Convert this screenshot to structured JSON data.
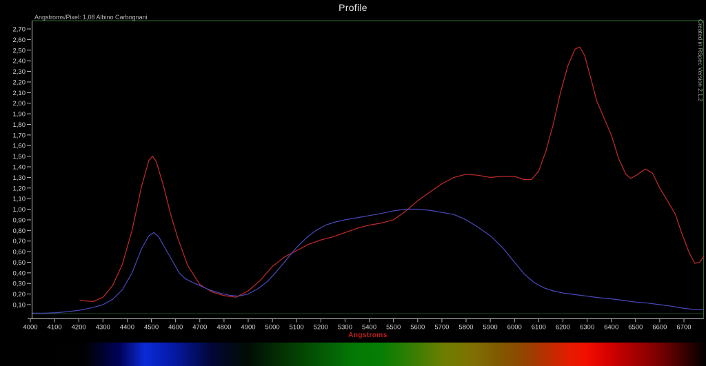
{
  "chart_data": {
    "type": "line",
    "title": "Profile",
    "annotation": "Angstroms/Pixel: 1,08 Albino Carbognani",
    "watermark": "Created in RSpec Version 2.1.2",
    "xlabel": "Angstroms",
    "xlabel_color": "#c41c1c",
    "xlim": [
      3995,
      6795
    ],
    "ylim": [
      0.0,
      2.78
    ],
    "grid": false,
    "legend": "none",
    "x_ticks": [
      4000,
      4100,
      4200,
      4300,
      4400,
      4500,
      4600,
      4700,
      4800,
      4900,
      5000,
      5100,
      5200,
      5300,
      5400,
      5500,
      5600,
      5700,
      5800,
      5900,
      6000,
      6100,
      6200,
      6300,
      6400,
      6500,
      6600,
      6700
    ],
    "y_tick_labels": [
      "2,70",
      "2,60",
      "2,50",
      "2,40",
      "2,30",
      "2,20",
      "2,10",
      "2,00",
      "1,90",
      "1,80",
      "1,70",
      "1,60",
      "1,50",
      "1,40",
      "1,30",
      "1,20",
      "1,10",
      "1,00",
      "0,90",
      "0,80",
      "0,70",
      "0,60",
      "0,50",
      "0,40",
      "0,30",
      "0,20",
      "0,10"
    ],
    "axis_colors": {
      "frame_top": "#2e6b2e",
      "frame_bottom": "#1d4d1d",
      "frame_right": "#2e6b2e",
      "y_axis": "#c9c9b5",
      "x_axis": "#b8b8b8",
      "tick_text": "#d4d4d4"
    },
    "series": [
      {
        "name": "intensity-red",
        "color": "#c62b2b",
        "points": [
          [
            4205,
            0.14
          ],
          [
            4230,
            0.135
          ],
          [
            4260,
            0.13
          ],
          [
            4300,
            0.17
          ],
          [
            4340,
            0.28
          ],
          [
            4380,
            0.48
          ],
          [
            4420,
            0.8
          ],
          [
            4460,
            1.22
          ],
          [
            4490,
            1.46
          ],
          [
            4505,
            1.5
          ],
          [
            4520,
            1.45
          ],
          [
            4550,
            1.22
          ],
          [
            4580,
            0.95
          ],
          [
            4610,
            0.72
          ],
          [
            4650,
            0.47
          ],
          [
            4700,
            0.29
          ],
          [
            4750,
            0.22
          ],
          [
            4800,
            0.185
          ],
          [
            4850,
            0.17
          ],
          [
            4900,
            0.23
          ],
          [
            4950,
            0.33
          ],
          [
            5000,
            0.46
          ],
          [
            5050,
            0.55
          ],
          [
            5100,
            0.61
          ],
          [
            5150,
            0.67
          ],
          [
            5200,
            0.71
          ],
          [
            5250,
            0.74
          ],
          [
            5300,
            0.78
          ],
          [
            5350,
            0.82
          ],
          [
            5400,
            0.85
          ],
          [
            5450,
            0.87
          ],
          [
            5500,
            0.9
          ],
          [
            5550,
            0.98
          ],
          [
            5600,
            1.08
          ],
          [
            5650,
            1.16
          ],
          [
            5700,
            1.24
          ],
          [
            5750,
            1.3
          ],
          [
            5800,
            1.33
          ],
          [
            5850,
            1.32
          ],
          [
            5900,
            1.3
          ],
          [
            5950,
            1.31
          ],
          [
            6000,
            1.31
          ],
          [
            6040,
            1.28
          ],
          [
            6070,
            1.28
          ],
          [
            6100,
            1.36
          ],
          [
            6130,
            1.55
          ],
          [
            6160,
            1.8
          ],
          [
            6190,
            2.1
          ],
          [
            6220,
            2.35
          ],
          [
            6250,
            2.51
          ],
          [
            6270,
            2.53
          ],
          [
            6290,
            2.45
          ],
          [
            6310,
            2.28
          ],
          [
            6340,
            2.02
          ],
          [
            6370,
            1.86
          ],
          [
            6400,
            1.7
          ],
          [
            6430,
            1.48
          ],
          [
            6460,
            1.33
          ],
          [
            6480,
            1.29
          ],
          [
            6510,
            1.33
          ],
          [
            6540,
            1.38
          ],
          [
            6570,
            1.34
          ],
          [
            6600,
            1.2
          ],
          [
            6640,
            1.05
          ],
          [
            6665,
            0.95
          ],
          [
            6690,
            0.78
          ],
          [
            6720,
            0.6
          ],
          [
            6745,
            0.49
          ],
          [
            6765,
            0.5
          ],
          [
            6790,
            0.58
          ]
        ]
      },
      {
        "name": "intensity-blue",
        "color": "#4a4abe",
        "points": [
          [
            4010,
            0.02
          ],
          [
            4060,
            0.02
          ],
          [
            4110,
            0.025
          ],
          [
            4160,
            0.035
          ],
          [
            4210,
            0.05
          ],
          [
            4260,
            0.075
          ],
          [
            4300,
            0.1
          ],
          [
            4340,
            0.15
          ],
          [
            4380,
            0.24
          ],
          [
            4420,
            0.4
          ],
          [
            4460,
            0.63
          ],
          [
            4490,
            0.75
          ],
          [
            4510,
            0.78
          ],
          [
            4530,
            0.74
          ],
          [
            4560,
            0.62
          ],
          [
            4590,
            0.5
          ],
          [
            4615,
            0.4
          ],
          [
            4640,
            0.345
          ],
          [
            4670,
            0.31
          ],
          [
            4700,
            0.28
          ],
          [
            4740,
            0.24
          ],
          [
            4780,
            0.21
          ],
          [
            4820,
            0.19
          ],
          [
            4860,
            0.18
          ],
          [
            4900,
            0.2
          ],
          [
            4940,
            0.25
          ],
          [
            4980,
            0.32
          ],
          [
            5020,
            0.42
          ],
          [
            5060,
            0.53
          ],
          [
            5100,
            0.64
          ],
          [
            5140,
            0.73
          ],
          [
            5180,
            0.8
          ],
          [
            5220,
            0.85
          ],
          [
            5260,
            0.88
          ],
          [
            5300,
            0.9
          ],
          [
            5350,
            0.92
          ],
          [
            5400,
            0.94
          ],
          [
            5450,
            0.96
          ],
          [
            5500,
            0.985
          ],
          [
            5550,
            1.0
          ],
          [
            5600,
            1.0
          ],
          [
            5650,
            0.99
          ],
          [
            5700,
            0.97
          ],
          [
            5750,
            0.95
          ],
          [
            5800,
            0.9
          ],
          [
            5850,
            0.83
          ],
          [
            5900,
            0.75
          ],
          [
            5950,
            0.64
          ],
          [
            6000,
            0.5
          ],
          [
            6040,
            0.39
          ],
          [
            6080,
            0.31
          ],
          [
            6120,
            0.26
          ],
          [
            6160,
            0.23
          ],
          [
            6200,
            0.21
          ],
          [
            6250,
            0.195
          ],
          [
            6300,
            0.18
          ],
          [
            6350,
            0.165
          ],
          [
            6400,
            0.155
          ],
          [
            6450,
            0.14
          ],
          [
            6500,
            0.125
          ],
          [
            6550,
            0.115
          ],
          [
            6600,
            0.1
          ],
          [
            6650,
            0.085
          ],
          [
            6700,
            0.065
          ],
          [
            6740,
            0.055
          ],
          [
            6790,
            0.05
          ]
        ]
      }
    ],
    "spectrum_bar": {
      "stops": [
        {
          "c": "#000000",
          "p": 0
        },
        {
          "c": "#010103",
          "p": 12
        },
        {
          "c": "#00025a",
          "p": 17
        },
        {
          "c": "#0b2bd8",
          "p": 20.5
        },
        {
          "c": "#0519a6",
          "p": 24.5
        },
        {
          "c": "#010636",
          "p": 30
        },
        {
          "c": "#020c04",
          "p": 35
        },
        {
          "c": "#033903",
          "p": 41
        },
        {
          "c": "#047804",
          "p": 50
        },
        {
          "c": "#067e04",
          "p": 54
        },
        {
          "c": "#357f03",
          "p": 58.5
        },
        {
          "c": "#6f7d02",
          "p": 63
        },
        {
          "c": "#7f7002",
          "p": 67
        },
        {
          "c": "#7f5a01",
          "p": 70.5
        },
        {
          "c": "#8f4701",
          "p": 74
        },
        {
          "c": "#b23201",
          "p": 77
        },
        {
          "c": "#e41c00",
          "p": 80.5
        },
        {
          "c": "#f21000",
          "p": 83
        },
        {
          "c": "#de0300",
          "p": 85.5
        },
        {
          "c": "#bc0000",
          "p": 88
        },
        {
          "c": "#8c0000",
          "p": 92
        },
        {
          "c": "#5e0000",
          "p": 95
        },
        {
          "c": "#2a0000",
          "p": 97.7
        },
        {
          "c": "#020000",
          "p": 100
        }
      ]
    }
  }
}
